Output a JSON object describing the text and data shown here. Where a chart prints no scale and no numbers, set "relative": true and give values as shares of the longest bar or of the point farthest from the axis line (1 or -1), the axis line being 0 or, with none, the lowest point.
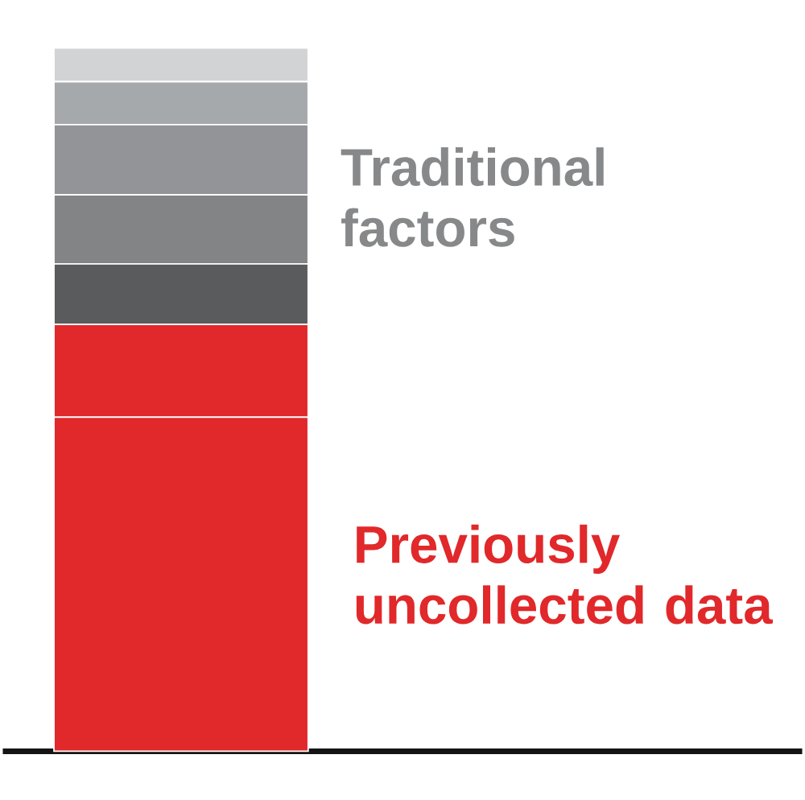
{
  "chart_data": {
    "type": "bar",
    "stacked": true,
    "relative": true,
    "categories": [
      null
    ],
    "series": [
      {
        "color": "#e1282a",
        "values": [
          0.475
        ]
      },
      {
        "color": "#e1282a",
        "values": [
          0.132
        ]
      },
      {
        "color": "#5a5b5d",
        "values": [
          0.086
        ]
      },
      {
        "color": "#838486",
        "values": [
          0.098
        ]
      },
      {
        "color": "#939497",
        "values": [
          0.1
        ]
      },
      {
        "color": "#a6a9ab",
        "values": [
          0.061
        ]
      },
      {
        "color": "#d2d3d5",
        "values": [
          0.048
        ]
      }
    ],
    "annotations": [
      "Traditional factors",
      "Previously uncollected data"
    ]
  }
}
